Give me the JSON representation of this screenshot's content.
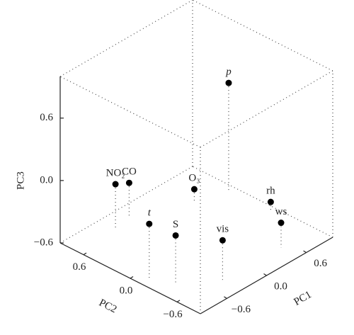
{
  "chart_data": {
    "type": "scatter3d",
    "xlabel": "PC1",
    "ylabel": "PC2",
    "zlabel": "PC3",
    "xlim": [
      -1.0,
      1.0
    ],
    "ylim": [
      -0.9,
      0.9
    ],
    "zlim": [
      -0.6,
      1.0
    ],
    "xticks": [
      {
        "value": -0.6,
        "label": "−0.6"
      },
      {
        "value": 0,
        "label": "0.0"
      },
      0.6
    ],
    "yticks": [
      {
        "value": -0.6,
        "label": "−0.6"
      },
      {
        "value": 0,
        "label": "0.0"
      },
      0.6
    ],
    "zticks": [
      {
        "value": -0.6,
        "label": "−0.6"
      },
      {
        "value": 0,
        "label": "0.0"
      },
      0.6
    ],
    "color": "#000000",
    "points": [
      {
        "label": "p",
        "x": 0.91,
        "y": 0.36,
        "z": 0.44
      },
      {
        "label": "NO₂",
        "x": -0.4,
        "y": 0.7,
        "z": -0.18
      },
      {
        "label": "CO",
        "x": -0.17,
        "y": 0.72,
        "z": -0.26
      },
      {
        "label": "O₃",
        "x": 0.52,
        "y": 0.47,
        "z": -0.48
      },
      {
        "label": "t",
        "x": -0.89,
        "y": -0.15,
        "z": -0.06
      },
      {
        "label": "S",
        "x": -0.75,
        "y": -0.37,
        "z": -0.14
      },
      {
        "label": "vis",
        "x": -0.37,
        "y": -0.65,
        "z": -0.22
      },
      {
        "label": "rh",
        "x": 0.91,
        "y": -0.18,
        "z": -0.5
      },
      {
        "label": "ws",
        "x": 0.49,
        "y": -0.67,
        "z": -0.36
      }
    ]
  }
}
